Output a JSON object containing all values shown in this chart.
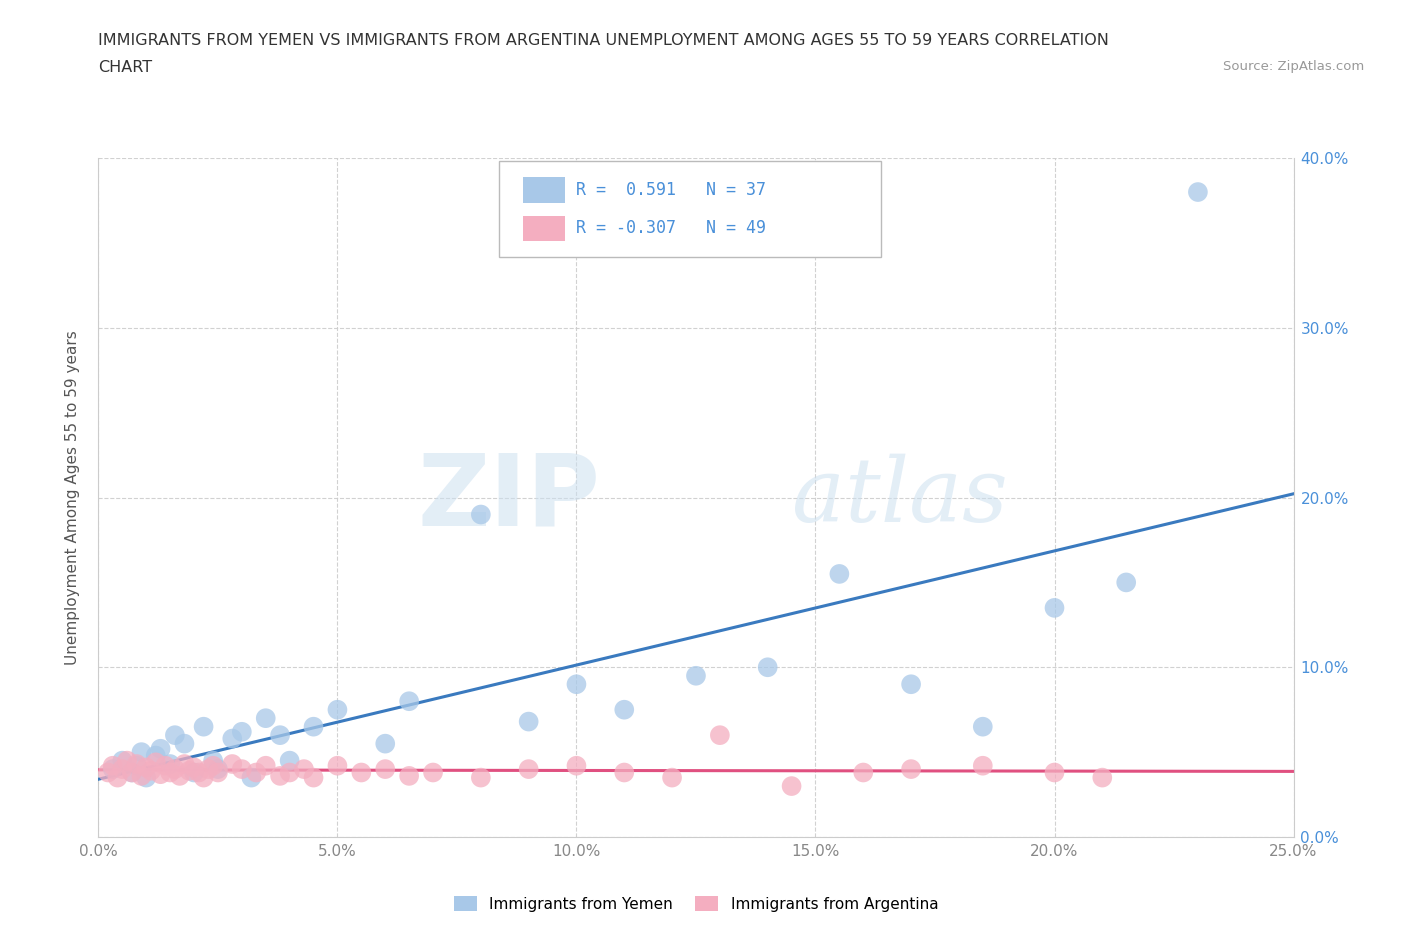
{
  "title_line1": "IMMIGRANTS FROM YEMEN VS IMMIGRANTS FROM ARGENTINA UNEMPLOYMENT AMONG AGES 55 TO 59 YEARS CORRELATION",
  "title_line2": "CHART",
  "source": "Source: ZipAtlas.com",
  "ylabel": "Unemployment Among Ages 55 to 59 years",
  "xlim": [
    0.0,
    0.25
  ],
  "ylim": [
    0.0,
    0.4
  ],
  "xticks": [
    0.0,
    0.05,
    0.1,
    0.15,
    0.2,
    0.25
  ],
  "yticks": [
    0.0,
    0.1,
    0.2,
    0.3,
    0.4
  ],
  "ytick_labels_right": [
    "0.0%",
    "10.0%",
    "20.0%",
    "30.0%",
    "40.0%"
  ],
  "xtick_labels": [
    "0.0%",
    "5.0%",
    "10.0%",
    "15.0%",
    "20.0%",
    "25.0%"
  ],
  "watermark_zip": "ZIP",
  "watermark_atlas": "atlas",
  "yemen_color": "#a8c8e8",
  "argentina_color": "#f4aec0",
  "yemen_line_color": "#3a7abf",
  "argentina_line_color": "#e05080",
  "R_yemen": 0.591,
  "N_yemen": 37,
  "R_argentina": -0.307,
  "N_argentina": 49,
  "legend_label_yemen": "Immigrants from Yemen",
  "legend_label_argentina": "Immigrants from Argentina",
  "yemen_x": [
    0.003,
    0.005,
    0.007,
    0.008,
    0.009,
    0.01,
    0.012,
    0.013,
    0.015,
    0.016,
    0.018,
    0.02,
    0.022,
    0.024,
    0.025,
    0.028,
    0.03,
    0.032,
    0.035,
    0.038,
    0.04,
    0.045,
    0.05,
    0.06,
    0.065,
    0.08,
    0.09,
    0.1,
    0.11,
    0.125,
    0.14,
    0.155,
    0.17,
    0.185,
    0.2,
    0.215,
    0.23
  ],
  "yemen_y": [
    0.04,
    0.045,
    0.038,
    0.042,
    0.05,
    0.035,
    0.048,
    0.052,
    0.043,
    0.06,
    0.055,
    0.038,
    0.065,
    0.045,
    0.04,
    0.058,
    0.062,
    0.035,
    0.07,
    0.06,
    0.045,
    0.065,
    0.075,
    0.055,
    0.08,
    0.19,
    0.068,
    0.09,
    0.075,
    0.095,
    0.1,
    0.155,
    0.09,
    0.065,
    0.135,
    0.15,
    0.38
  ],
  "argentina_x": [
    0.002,
    0.003,
    0.004,
    0.005,
    0.006,
    0.007,
    0.008,
    0.009,
    0.01,
    0.011,
    0.012,
    0.013,
    0.014,
    0.015,
    0.016,
    0.017,
    0.018,
    0.019,
    0.02,
    0.021,
    0.022,
    0.023,
    0.024,
    0.025,
    0.028,
    0.03,
    0.033,
    0.035,
    0.038,
    0.04,
    0.043,
    0.045,
    0.05,
    0.055,
    0.06,
    0.065,
    0.07,
    0.08,
    0.09,
    0.1,
    0.11,
    0.12,
    0.13,
    0.145,
    0.16,
    0.17,
    0.185,
    0.2,
    0.21
  ],
  "argentina_y": [
    0.038,
    0.042,
    0.035,
    0.04,
    0.045,
    0.038,
    0.043,
    0.036,
    0.041,
    0.039,
    0.044,
    0.037,
    0.042,
    0.038,
    0.04,
    0.036,
    0.043,
    0.039,
    0.041,
    0.038,
    0.035,
    0.04,
    0.042,
    0.038,
    0.043,
    0.04,
    0.038,
    0.042,
    0.036,
    0.038,
    0.04,
    0.035,
    0.042,
    0.038,
    0.04,
    0.036,
    0.038,
    0.035,
    0.04,
    0.042,
    0.038,
    0.035,
    0.06,
    0.03,
    0.038,
    0.04,
    0.042,
    0.038,
    0.035
  ],
  "background_color": "#ffffff",
  "grid_color": "#cccccc",
  "tick_color": "#888888",
  "right_tick_color": "#4a90d9"
}
